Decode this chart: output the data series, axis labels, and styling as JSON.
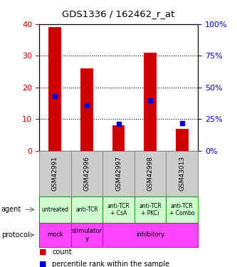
{
  "title": "GDS1336 / 162462_r_at",
  "samples": [
    "GSM42991",
    "GSM42996",
    "GSM42997",
    "GSM42998",
    "GSM43013"
  ],
  "count_values": [
    39,
    26,
    8,
    31,
    7
  ],
  "percentile_values_right": [
    43,
    36,
    21,
    40,
    22
  ],
  "ylim_left": [
    0,
    40
  ],
  "ylim_right": [
    0,
    100
  ],
  "yticks_left": [
    0,
    10,
    20,
    30,
    40
  ],
  "yticks_right": [
    0,
    25,
    50,
    75,
    100
  ],
  "bar_color": "#cc0000",
  "pct_color": "#0000cc",
  "agent_labels": [
    "untreated",
    "anti-TCR",
    "anti-TCR\n+ CsA",
    "anti-TCR\n+ PKCi",
    "anti-TCR\n+ Combo"
  ],
  "agent_bg": "#ccffcc",
  "agent_border": "#009900",
  "protocol_bg": "#ff44ff",
  "protocol_border": "#cc00cc",
  "gsm_bg": "#cccccc",
  "gsm_border": "#888888",
  "legend_count_color": "#cc0000",
  "legend_pct_color": "#0000cc",
  "left_axis_color": "#cc0000",
  "right_axis_color": "#0000cc",
  "proto_spans": [
    [
      0,
      1,
      "mock"
    ],
    [
      1,
      2,
      "stimulator\ny"
    ],
    [
      2,
      5,
      "inhibitory"
    ]
  ]
}
